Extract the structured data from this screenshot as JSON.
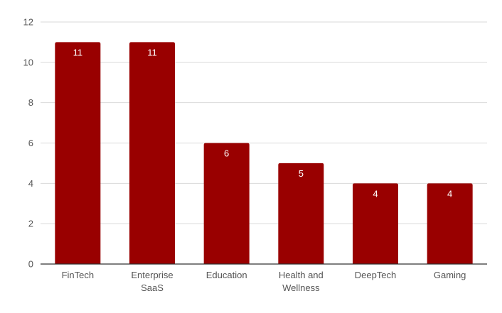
{
  "chart_data": {
    "type": "bar",
    "categories": [
      [
        "FinTech"
      ],
      [
        "Enterprise",
        "SaaS"
      ],
      [
        "Education"
      ],
      [
        "Health and",
        "Wellness"
      ],
      [
        "DeepTech"
      ],
      [
        "Gaming"
      ]
    ],
    "values": [
      11,
      11,
      6,
      5,
      4,
      4
    ],
    "data_labels": [
      "11",
      "11",
      "6",
      "5",
      "4",
      "4"
    ],
    "title": "",
    "xlabel": "",
    "ylabel": "",
    "ylim": [
      0,
      12
    ],
    "yticks": [
      0,
      2,
      4,
      6,
      8,
      10,
      12
    ],
    "grid": true,
    "legend": "none",
    "bar_color": "#990000",
    "grid_color": "#d9d9d9",
    "axis_color": "#333333"
  }
}
